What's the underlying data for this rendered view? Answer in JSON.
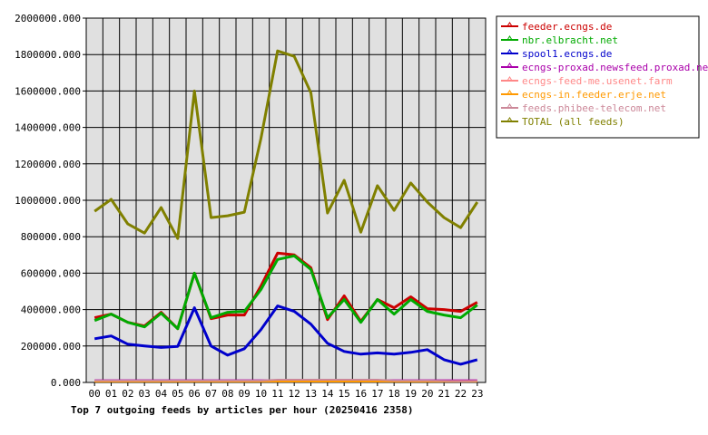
{
  "chart_data": {
    "type": "line",
    "title": "Top 7 outgoing feeds by articles per hour (20250416 2358)",
    "xlabel": "",
    "ylabel": "",
    "categories": [
      "00",
      "01",
      "02",
      "03",
      "04",
      "05",
      "06",
      "07",
      "08",
      "09",
      "10",
      "11",
      "12",
      "13",
      "14",
      "15",
      "16",
      "17",
      "18",
      "19",
      "20",
      "21",
      "22",
      "23"
    ],
    "ylim": [
      0,
      2000000
    ],
    "yticks": [
      "0.000",
      "200000.000",
      "400000.000",
      "600000.000",
      "800000.000",
      "1000000.000",
      "1200000.000",
      "1400000.000",
      "1600000.000",
      "1800000.000",
      "2000000.000"
    ],
    "grid": true,
    "legend_position": "right",
    "series": [
      {
        "name": "feeder.ecngs.de",
        "color": "#cc0000",
        "values": [
          355000,
          375000,
          330000,
          310000,
          385000,
          295000,
          600000,
          350000,
          370000,
          370000,
          530000,
          710000,
          700000,
          630000,
          345000,
          475000,
          335000,
          455000,
          410000,
          470000,
          405000,
          400000,
          390000,
          440000
        ]
      },
      {
        "name": "nbr.elbracht.net",
        "color": "#00aa00",
        "values": [
          340000,
          375000,
          330000,
          305000,
          380000,
          295000,
          600000,
          355000,
          385000,
          390000,
          510000,
          675000,
          695000,
          620000,
          355000,
          455000,
          330000,
          455000,
          375000,
          455000,
          390000,
          370000,
          355000,
          425000
        ]
      },
      {
        "name": "spool1.ecngs.de",
        "color": "#0000cc",
        "values": [
          240000,
          255000,
          210000,
          200000,
          192000,
          198000,
          410000,
          200000,
          150000,
          185000,
          290000,
          420000,
          390000,
          320000,
          215000,
          170000,
          155000,
          162000,
          155000,
          165000,
          180000,
          125000,
          100000,
          125000
        ]
      },
      {
        "name": "ecngs-proxad.newsfeed.proxad.net",
        "color": "#aa00aa",
        "values": [
          12000,
          12000,
          12000,
          12000,
          12000,
          12000,
          12000,
          12000,
          12000,
          12000,
          12000,
          12000,
          12000,
          12000,
          12000,
          12000,
          12000,
          12000,
          12000,
          12000,
          12000,
          12000,
          12000,
          12000
        ]
      },
      {
        "name": "ecngs-feed-me.usenet.farm",
        "color": "#ff8888",
        "values": [
          8000,
          8000,
          8000,
          8000,
          8000,
          8000,
          8000,
          8000,
          8000,
          8000,
          8000,
          8000,
          8000,
          8000,
          8000,
          8000,
          8000,
          8000,
          8000,
          8000,
          8000,
          8000,
          8000,
          8000
        ]
      },
      {
        "name": "ecngs-in.feeder.erje.net",
        "color": "#ff9900",
        "values": [
          5000,
          5000,
          5000,
          5000,
          5000,
          5000,
          5000,
          5000,
          5000,
          5000,
          5000,
          5000,
          5000,
          5000,
          5000,
          5000,
          5000,
          5000,
          5000,
          5000,
          5000,
          5000,
          5000,
          5000
        ]
      },
      {
        "name": "feeds.phibee-telecom.net",
        "color": "#cc8899",
        "values": [
          10000,
          10000,
          10000,
          10000,
          10000,
          10000,
          10000,
          10000,
          10000,
          10000,
          10000,
          15000,
          15000,
          15000,
          15000,
          15000,
          15000,
          15000,
          10000,
          10000,
          10000,
          8000,
          6000,
          8000
        ]
      },
      {
        "name": "TOTAL (all feeds)",
        "color": "#808000",
        "values": [
          940000,
          1005000,
          870000,
          820000,
          960000,
          790000,
          1600000,
          905000,
          915000,
          935000,
          1340000,
          1820000,
          1790000,
          1590000,
          930000,
          1110000,
          825000,
          1080000,
          945000,
          1095000,
          990000,
          905000,
          850000,
          990000
        ]
      }
    ]
  }
}
